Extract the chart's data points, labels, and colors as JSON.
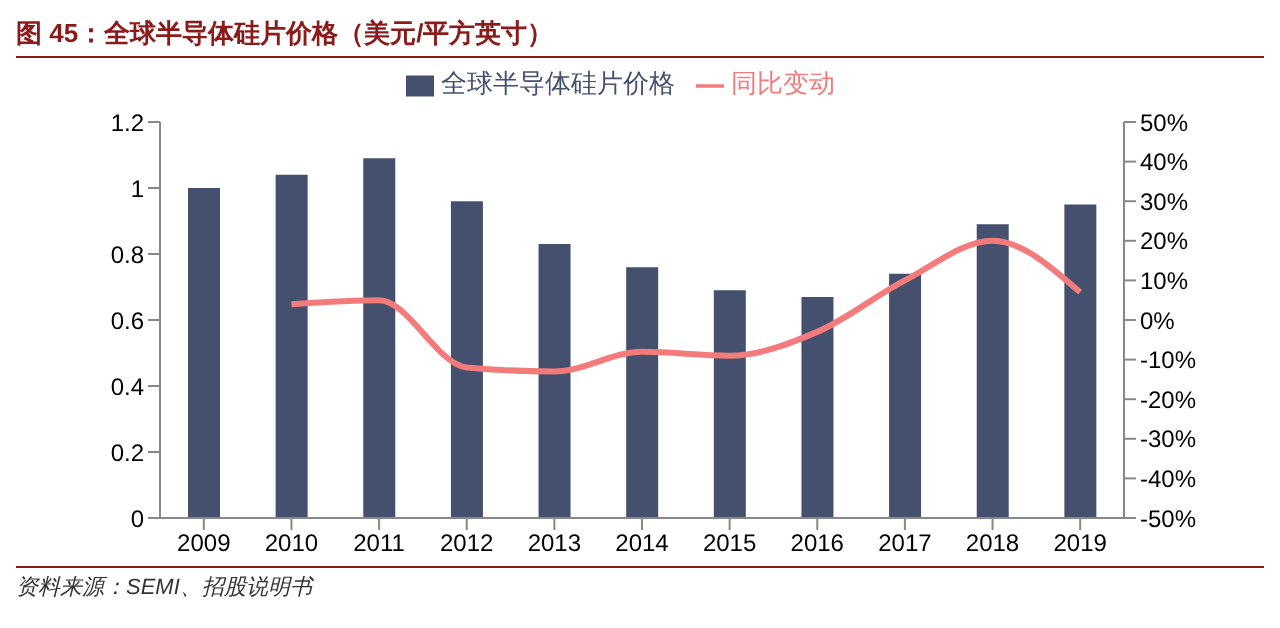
{
  "chart_data": {
    "type": "bar",
    "title": "图 45：全球半导体硅片价格（美元/平方英寸）",
    "categories": [
      "2009",
      "2010",
      "2011",
      "2012",
      "2013",
      "2014",
      "2015",
      "2016",
      "2017",
      "2018",
      "2019"
    ],
    "series": [
      {
        "name": "全球半导体硅片价格",
        "color": "#44506e",
        "values": [
          1.0,
          1.04,
          1.09,
          0.96,
          0.83,
          0.76,
          0.69,
          0.67,
          0.74,
          0.89,
          0.95
        ]
      },
      {
        "name": "同比变动",
        "type": "line",
        "axis": "y2",
        "color": "#f37b7b",
        "values": [
          null,
          4,
          5,
          -12,
          -13,
          -8,
          -9,
          -3,
          10,
          20,
          7
        ]
      }
    ],
    "ylim": [
      0,
      1.2
    ],
    "yticks": [
      0,
      0.2,
      0.4,
      0.6,
      0.8,
      1,
      1.2
    ],
    "y2lim": [
      -50,
      50
    ],
    "y2ticks": [
      {
        "value": -50,
        "label": "-50%"
      },
      {
        "value": -40,
        "label": "-40%"
      },
      {
        "value": -30,
        "label": "-30%"
      },
      {
        "value": -20,
        "label": "-20%"
      },
      {
        "value": -10,
        "label": "-10%"
      },
      {
        "value": 0,
        "label": "0%"
      },
      {
        "value": 10,
        "label": "10%"
      },
      {
        "value": 20,
        "label": "20%"
      },
      {
        "value": 30,
        "label": "30%"
      },
      {
        "value": 40,
        "label": "40%"
      },
      {
        "value": 50,
        "label": "50%"
      }
    ],
    "legend": "top",
    "grid": false,
    "marker": "none",
    "annotations": [
      "资料来源：SEMI、招股说明书"
    ]
  }
}
